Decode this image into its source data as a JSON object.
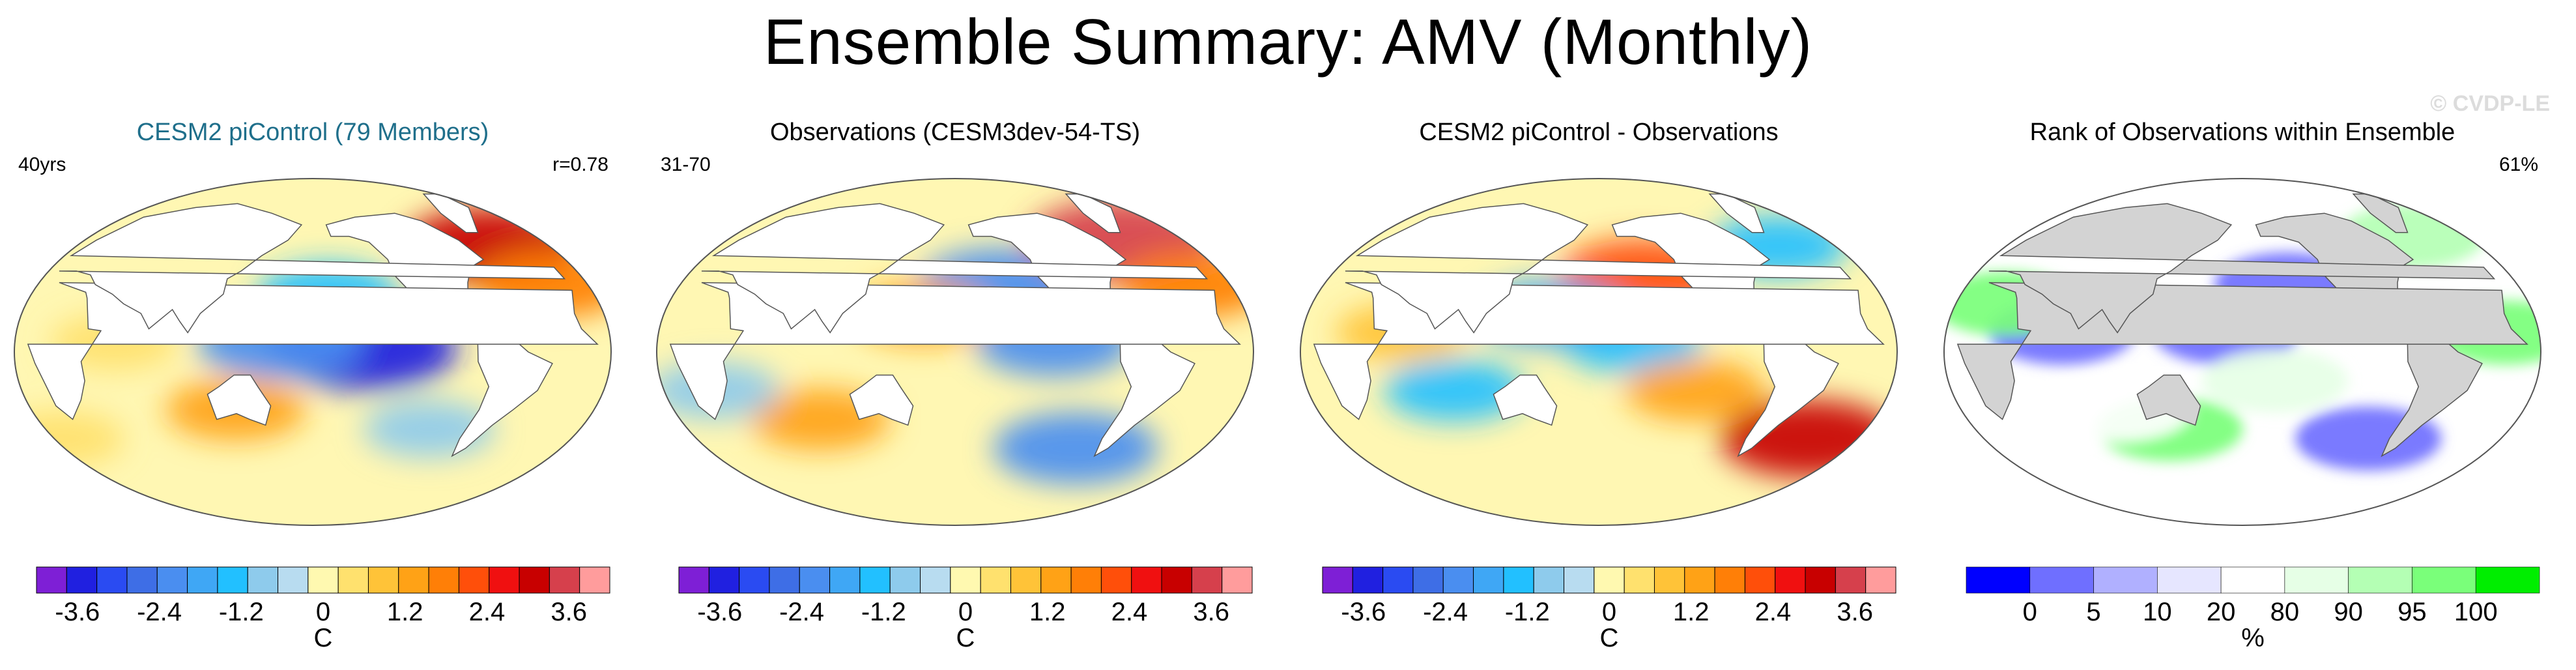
{
  "figure": {
    "title": "Ensemble Summary: AMV (Monthly)",
    "watermark": "© CVDP-LE"
  },
  "colors": {
    "land": "#ffffff",
    "ocean_base": "#fff7b3",
    "rank_land": "#d3d3d3",
    "title_teal": "#1f6f8b",
    "diverging_scale": [
      "#7e1fd6",
      "#2020e0",
      "#2a4bf2",
      "#3e6ee6",
      "#4a8ef0",
      "#3fa7f5",
      "#22c0ff",
      "#8ecbec",
      "#b8dcf0",
      "#fff9b0",
      "#ffe16e",
      "#ffc338",
      "#ffa216",
      "#ff7f07",
      "#ff4f0a",
      "#f01010",
      "#c80000",
      "#d6404c",
      "#ff9c9c"
    ],
    "rank_scale": [
      "#0000ff",
      "#6f6fff",
      "#b0b0ff",
      "#e6e6ff",
      "#ffffff",
      "#e6ffe6",
      "#b4ffb4",
      "#7aff7a",
      "#00ee00"
    ]
  },
  "chart_data": [
    {
      "type": "heatmap",
      "title": "CESM2 piControl (79 Members)",
      "left_note": "40yrs",
      "right_note": "r=0.78",
      "units": "C",
      "colorbar_ticks": [
        "-3.6",
        "-2.4",
        "-1.2",
        "0",
        "1.2",
        "2.4",
        "3.6"
      ],
      "colorbar_range": [
        -4.2,
        4.2
      ],
      "features": [
        {
          "lon": -150,
          "lat": 2,
          "value": -3.6
        },
        {
          "lon": 160,
          "lat": 5,
          "value": -2.4
        },
        {
          "lon": -170,
          "lat": 30,
          "value": -1.2
        },
        {
          "lon": 60,
          "lat": 5,
          "value": 0.6
        },
        {
          "lon": -40,
          "lat": 55,
          "value": 3.0
        },
        {
          "lon": -20,
          "lat": 35,
          "value": 1.8
        },
        {
          "lon": 130,
          "lat": -30,
          "value": 1.2
        },
        {
          "lon": 0,
          "lat": -45,
          "value": 0.6
        },
        {
          "lon": -100,
          "lat": -40,
          "value": -0.8
        }
      ]
    },
    {
      "type": "heatmap",
      "title": "Observations (CESM3dev-54-TS)",
      "left_note": "31-70",
      "right_note": "",
      "units": "C",
      "colorbar_ticks": [
        "-3.6",
        "-2.4",
        "-1.2",
        "0",
        "1.2",
        "2.4",
        "3.6"
      ],
      "colorbar_range": [
        -4.2,
        4.2
      ],
      "features": [
        {
          "lon": -150,
          "lat": 35,
          "value": -2.4
        },
        {
          "lon": -120,
          "lat": 5,
          "value": -2.0
        },
        {
          "lon": -45,
          "lat": 58,
          "value": 3.6
        },
        {
          "lon": -20,
          "lat": 35,
          "value": 1.8
        },
        {
          "lon": 160,
          "lat": 20,
          "value": 1.2
        },
        {
          "lon": -90,
          "lat": -50,
          "value": -2.4
        },
        {
          "lon": 90,
          "lat": -35,
          "value": 1.2
        },
        {
          "lon": 30,
          "lat": -20,
          "value": -0.8
        }
      ]
    },
    {
      "type": "heatmap",
      "title": "CESM2 piControl - Observations",
      "left_note": "",
      "right_note": "",
      "units": "C",
      "colorbar_ticks": [
        "-3.6",
        "-2.4",
        "-1.2",
        "0",
        "1.2",
        "2.4",
        "3.6"
      ],
      "colorbar_range": [
        -4.2,
        4.2
      ],
      "features": [
        {
          "lon": -150,
          "lat": 40,
          "value": 2.4
        },
        {
          "lon": -160,
          "lat": 5,
          "value": -1.2
        },
        {
          "lon": 150,
          "lat": 20,
          "value": -1.8
        },
        {
          "lon": -40,
          "lat": 55,
          "value": -1.2
        },
        {
          "lon": -30,
          "lat": -45,
          "value": 3.0
        },
        {
          "lon": 90,
          "lat": -20,
          "value": -1.2
        },
        {
          "lon": -120,
          "lat": -20,
          "value": 1.2
        },
        {
          "lon": 60,
          "lat": 10,
          "value": 0.8
        }
      ]
    },
    {
      "type": "heatmap",
      "title": "Rank of Observations within Ensemble",
      "left_note": "",
      "right_note": "61%",
      "units": "%",
      "colorbar_ticks": [
        "0",
        "5",
        "10",
        "20",
        "80",
        "90",
        "95",
        "100"
      ],
      "features": [
        {
          "lon": -150,
          "lat": 35,
          "value": 2
        },
        {
          "lon": 170,
          "lat": 10,
          "value": 4
        },
        {
          "lon": 70,
          "lat": 10,
          "value": 3
        },
        {
          "lon": -90,
          "lat": -45,
          "value": 1
        },
        {
          "lon": 30,
          "lat": 25,
          "value": 98
        },
        {
          "lon": -40,
          "lat": 60,
          "value": 92
        },
        {
          "lon": -20,
          "lat": 10,
          "value": 98
        },
        {
          "lon": 130,
          "lat": -40,
          "value": 97
        },
        {
          "lon": -160,
          "lat": -15,
          "value": 90
        },
        {
          "lon": 100,
          "lat": -30,
          "value": 50
        }
      ]
    }
  ]
}
